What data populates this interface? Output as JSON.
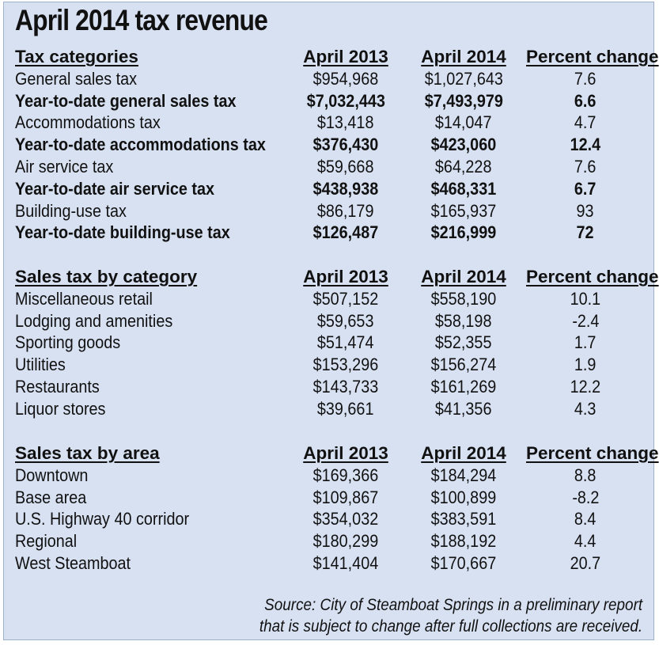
{
  "title": "April 2014 tax revenue",
  "columns": [
    "April 2013",
    "April 2014",
    "Percent change"
  ],
  "source_line1": "Source: City of Steamboat Springs in a preliminary report",
  "source_line2": "that is subject to change after full collections are received.",
  "chart_data": [
    {
      "type": "table",
      "title": "Tax categories",
      "columns": [
        "April 2013",
        "April 2014",
        "Percent change"
      ],
      "rows": [
        {
          "label": "General sales tax",
          "v2013": "$954,968",
          "v2014": "$1,027,643",
          "pct": "7.6",
          "bold": false
        },
        {
          "label": "Year-to-date general sales tax",
          "v2013": "$7,032,443",
          "v2014": "$7,493,979",
          "pct": "6.6",
          "bold": true
        },
        {
          "label": "Accommodations tax",
          "v2013": "$13,418",
          "v2014": "$14,047",
          "pct": "4.7",
          "bold": false
        },
        {
          "label": "Year-to-date accommodations tax",
          "v2013": "$376,430",
          "v2014": "$423,060",
          "pct": "12.4",
          "bold": true
        },
        {
          "label": "Air service tax",
          "v2013": "$59,668",
          "v2014": "$64,228",
          "pct": "7.6",
          "bold": false
        },
        {
          "label": "Year-to-date air service tax",
          "v2013": "$438,938",
          "v2014": "$468,331",
          "pct": "6.7",
          "bold": true
        },
        {
          "label": "Building-use tax",
          "v2013": "$86,179",
          "v2014": "$165,937",
          "pct": "93",
          "bold": false
        },
        {
          "label": "Year-to-date building-use tax",
          "v2013": "$126,487",
          "v2014": "$216,999",
          "pct": "72",
          "bold": true
        }
      ]
    },
    {
      "type": "table",
      "title": "Sales tax by category",
      "columns": [
        "April 2013",
        "April 2014",
        "Percent change"
      ],
      "rows": [
        {
          "label": "Miscellaneous retail",
          "v2013": "$507,152",
          "v2014": "$558,190",
          "pct": "10.1",
          "bold": false
        },
        {
          "label": "Lodging and amenities",
          "v2013": "$59,653",
          "v2014": "$58,198",
          "pct": "-2.4",
          "bold": false
        },
        {
          "label": "Sporting goods",
          "v2013": "$51,474",
          "v2014": "$52,355",
          "pct": "1.7",
          "bold": false
        },
        {
          "label": "Utilities",
          "v2013": "$153,296",
          "v2014": "$156,274",
          "pct": "1.9",
          "bold": false
        },
        {
          "label": "Restaurants",
          "v2013": "$143,733",
          "v2014": "$161,269",
          "pct": "12.2",
          "bold": false
        },
        {
          "label": "Liquor stores",
          "v2013": "$39,661",
          "v2014": "$41,356",
          "pct": "4.3",
          "bold": false
        }
      ]
    },
    {
      "type": "table",
      "title": "Sales tax by area",
      "columns": [
        "April 2013",
        "April 2014",
        "Percent change"
      ],
      "rows": [
        {
          "label": "Downtown",
          "v2013": "$169,366",
          "v2014": "$184,294",
          "pct": "8.8",
          "bold": false
        },
        {
          "label": "Base area",
          "v2013": "$109,867",
          "v2014": "$100,899",
          "pct": "-8.2",
          "bold": false
        },
        {
          "label": "U.S. Highway 40 corridor",
          "v2013": "$354,032",
          "v2014": "$383,591",
          "pct": "8.4",
          "bold": false
        },
        {
          "label": "Regional",
          "v2013": "$180,299",
          "v2014": "$188,192",
          "pct": "4.4",
          "bold": false
        },
        {
          "label": "West Steamboat",
          "v2013": "$141,404",
          "v2014": "$170,667",
          "pct": "20.7",
          "bold": false
        }
      ]
    }
  ]
}
